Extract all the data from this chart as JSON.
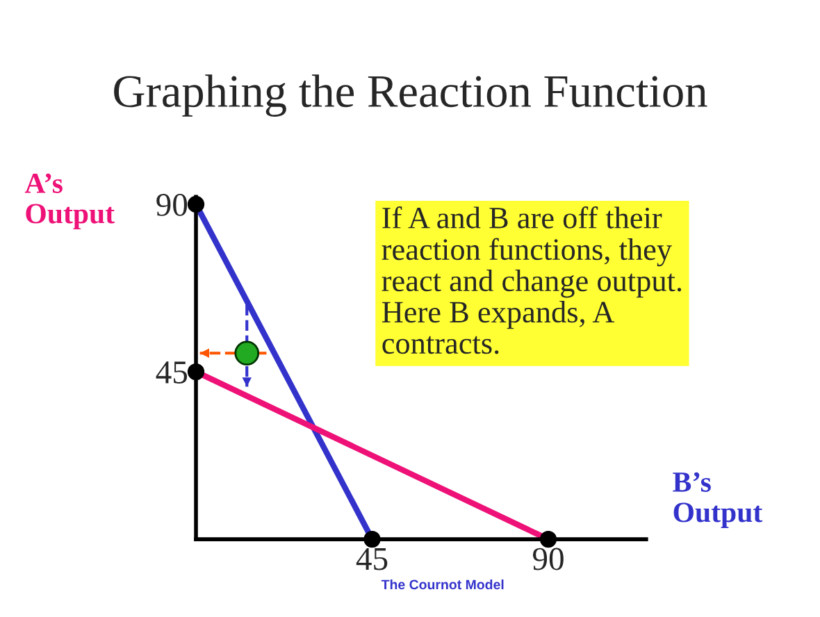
{
  "chart_data": {
    "type": "line",
    "title": "Graphing the Reaction Function",
    "xlabel": "B’s\nOutput",
    "ylabel": "A’s\nOutput",
    "xlim": [
      0,
      115
    ],
    "ylim": [
      0,
      92
    ],
    "xticks": [
      45,
      90
    ],
    "yticks": [
      45,
      90
    ],
    "grid": false,
    "legend": false,
    "series": [
      {
        "color": "#3333cc",
        "x": [
          0,
          45
        ],
        "values": [
          90,
          0
        ]
      },
      {
        "color": "#ee1177",
        "x": [
          0,
          90
        ],
        "values": [
          45,
          0
        ]
      },
      {
        "color": "#ff5500",
        "line_style": "dashed",
        "x": [
          18,
          1
        ],
        "values": [
          50,
          50
        ]
      },
      {
        "color": "#3333cc",
        "line_style": "dashed",
        "x": [
          13,
          13
        ],
        "values": [
          63,
          41
        ]
      },
      {
        "type": "scatter",
        "color": "#000000",
        "x": [
          0,
          0,
          45,
          90
        ],
        "values": [
          90,
          45,
          0,
          0
        ]
      },
      {
        "type": "scatter",
        "color": "#22aa22",
        "x": [
          13
        ],
        "values": [
          50
        ]
      }
    ],
    "annotations": [
      "If A and B are off their\nreaction functions, they\nreact and change output.\nHere B expands, A\ncontracts.",
      "The Cournot Model"
    ]
  }
}
